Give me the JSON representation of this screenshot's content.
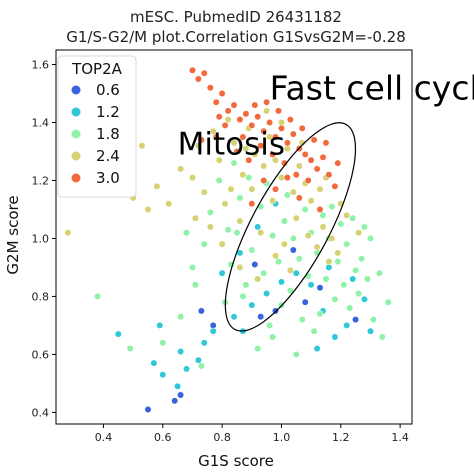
{
  "chart_data": [
    {
      "type": "scatter",
      "title_line1": "mESC. PubmedID 26431182",
      "title_line2": "G1/S-G2/M plot.Correlation G1SvsG2M=-0.28",
      "xlabel": "G1S score",
      "ylabel": "G2M score",
      "xlim": [
        0.24,
        1.44
      ],
      "ylim": [
        0.36,
        1.65
      ],
      "x_ticks": [
        "0.4",
        "0.6",
        "0.8",
        "1.0",
        "1.2",
        "1.4"
      ],
      "x_tick_values": [
        0.4,
        0.6,
        0.8,
        1.0,
        1.2,
        1.4
      ],
      "y_ticks": [
        "0.4",
        "0.6",
        "0.8",
        "1.0",
        "1.2",
        "1.4",
        "1.6"
      ],
      "y_tick_values": [
        0.4,
        0.6,
        0.8,
        1.0,
        1.2,
        1.4,
        1.6
      ],
      "grid": false,
      "legend": {
        "title": "TOP2A",
        "placement": "top-left",
        "entries": [
          {
            "label": "0.6",
            "color": "#3a62e0"
          },
          {
            "label": "1.2",
            "color": "#2ec8d8"
          },
          {
            "label": "1.8",
            "color": "#8ef3a8"
          },
          {
            "label": "2.4",
            "color": "#d6d272"
          },
          {
            "label": "3.0",
            "color": "#f26a3c"
          }
        ]
      },
      "annotations": [
        {
          "text": "Fast cell cycle",
          "x": 0.96,
          "y": 1.48
        },
        {
          "text": "Mitosis",
          "x": 0.65,
          "y": 1.29
        }
      ],
      "ellipse": {
        "cx": 1.03,
        "cy": 1.04,
        "semi_major": 0.4,
        "semi_minor": 0.13,
        "angle_deg": -62
      },
      "series": [
        {
          "points": [
            [
              0.55,
              0.41
            ],
            [
              0.64,
              0.44
            ],
            [
              0.66,
              0.46
            ],
            [
              0.73,
              0.75
            ],
            [
              0.77,
              0.7
            ],
            [
              0.93,
              0.73
            ],
            [
              0.98,
              0.75
            ],
            [
              1.08,
              0.78
            ],
            [
              1.13,
              0.83
            ],
            [
              1.25,
              0.72
            ],
            [
              1.04,
              0.96
            ],
            [
              0.91,
              0.91
            ]
          ],
          "level": "0.6"
        },
        {
          "points": [
            [
              0.45,
              0.67
            ],
            [
              0.57,
              0.57
            ],
            [
              0.6,
              0.53
            ],
            [
              0.68,
              0.55
            ],
            [
              0.72,
              0.58
            ],
            [
              0.77,
              0.68
            ],
            [
              0.84,
              0.73
            ],
            [
              0.9,
              0.77
            ],
            [
              0.95,
              0.81
            ],
            [
              1.0,
              0.85
            ],
            [
              1.05,
              0.88
            ],
            [
              1.1,
              0.84
            ],
            [
              1.16,
              0.9
            ],
            [
              1.22,
              0.7
            ],
            [
              1.28,
              0.79
            ],
            [
              1.3,
              0.68
            ],
            [
              0.8,
              0.88
            ],
            [
              0.86,
              0.95
            ],
            [
              0.92,
              1.04
            ],
            [
              0.98,
              1.12
            ],
            [
              1.12,
              0.62
            ],
            [
              1.18,
              0.66
            ],
            [
              0.66,
              0.61
            ],
            [
              0.74,
              0.64
            ],
            [
              1.24,
              0.86
            ],
            [
              1.14,
              0.75
            ],
            [
              0.87,
              0.68
            ],
            [
              0.65,
              0.49
            ],
            [
              0.59,
              0.7
            ]
          ],
          "level": "1.2"
        },
        {
          "points": [
            [
              0.38,
              0.8
            ],
            [
              0.49,
              0.62
            ],
            [
              0.6,
              0.64
            ],
            [
              0.66,
              0.73
            ],
            [
              0.71,
              0.84
            ],
            [
              0.74,
              0.98
            ],
            [
              0.76,
              1.09
            ],
            [
              0.81,
              0.78
            ],
            [
              0.83,
              0.91
            ],
            [
              0.85,
              1.02
            ],
            [
              0.86,
              1.14
            ],
            [
              0.88,
              0.84
            ],
            [
              0.9,
              0.96
            ],
            [
              0.93,
              1.11
            ],
            [
              0.94,
              0.88
            ],
            [
              0.96,
              0.7
            ],
            [
              0.97,
              1.01
            ],
            [
              0.99,
              0.92
            ],
            [
              1.0,
              0.77
            ],
            [
              1.01,
              1.06
            ],
            [
              1.03,
              0.82
            ],
            [
              1.04,
              1.0
            ],
            [
              1.06,
              0.93
            ],
            [
              1.07,
              0.72
            ],
            [
              1.09,
              0.87
            ],
            [
              1.1,
              1.02
            ],
            [
              1.12,
              0.95
            ],
            [
              1.13,
              0.74
            ],
            [
              1.15,
              0.86
            ],
            [
              1.16,
              1.0
            ],
            [
              1.18,
              0.79
            ],
            [
              1.19,
              0.92
            ],
            [
              1.21,
              0.84
            ],
            [
              1.22,
              0.98
            ],
            [
              1.23,
              0.76
            ],
            [
              1.25,
              0.89
            ],
            [
              1.26,
              0.81
            ],
            [
              1.27,
              0.93
            ],
            [
              1.29,
              0.86
            ],
            [
              1.3,
              1.0
            ],
            [
              1.31,
              0.72
            ],
            [
              1.33,
              0.88
            ],
            [
              1.34,
              0.66
            ],
            [
              0.79,
              1.2
            ],
            [
              0.84,
              1.26
            ],
            [
              0.89,
              1.21
            ],
            [
              0.95,
              1.19
            ],
            [
              1.02,
              1.15
            ],
            [
              1.08,
              1.1
            ],
            [
              1.14,
              1.08
            ],
            [
              1.2,
              1.05
            ],
            [
              0.7,
              0.9
            ],
            [
              0.73,
              0.56
            ],
            [
              0.68,
              1.02
            ],
            [
              1.17,
              1.11
            ],
            [
              1.24,
              1.07
            ],
            [
              1.28,
              1.04
            ],
            [
              0.92,
              0.62
            ],
            [
              0.97,
              0.66
            ],
            [
              1.05,
              0.6
            ],
            [
              1.11,
              0.68
            ],
            [
              0.82,
              1.03
            ],
            [
              0.87,
              0.8
            ],
            [
              1.36,
              0.78
            ]
          ],
          "level": "1.8"
        },
        {
          "points": [
            [
              0.28,
              1.02
            ],
            [
              0.5,
              1.14
            ],
            [
              0.55,
              1.1
            ],
            [
              0.58,
              1.18
            ],
            [
              0.62,
              1.12
            ],
            [
              0.66,
              1.24
            ],
            [
              0.7,
              1.21
            ],
            [
              0.72,
              1.32
            ],
            [
              0.74,
              1.16
            ],
            [
              0.77,
              1.37
            ],
            [
              0.79,
              1.27
            ],
            [
              0.81,
              1.12
            ],
            [
              0.82,
              1.41
            ],
            [
              0.84,
              1.33
            ],
            [
              0.86,
              1.06
            ],
            [
              0.87,
              1.22
            ],
            [
              0.89,
              1.38
            ],
            [
              0.9,
              1.17
            ],
            [
              0.91,
              1.29
            ],
            [
              0.93,
              1.02
            ],
            [
              0.94,
              1.25
            ],
            [
              0.96,
              1.35
            ],
            [
              0.97,
              1.13
            ],
            [
              0.98,
              1.27
            ],
            [
              1.0,
              1.21
            ],
            [
              1.01,
              0.98
            ],
            [
              1.02,
              1.31
            ],
            [
              1.04,
              1.16
            ],
            [
              1.05,
              1.07
            ],
            [
              1.06,
              1.25
            ],
            [
              1.08,
              1.19
            ],
            [
              1.09,
              1.01
            ],
            [
              1.1,
              1.13
            ],
            [
              1.12,
              0.97
            ],
            [
              1.13,
              1.17
            ],
            [
              1.14,
              1.04
            ],
            [
              1.16,
              0.92
            ],
            [
              1.17,
              1.0
            ],
            [
              1.19,
              0.95
            ],
            [
              1.2,
              1.12
            ],
            [
              0.86,
              0.9
            ],
            [
              0.92,
              0.86
            ],
            [
              0.98,
              0.94
            ],
            [
              1.03,
              0.89
            ],
            [
              0.8,
              0.98
            ],
            [
              0.76,
              1.04
            ],
            [
              1.15,
              1.21
            ],
            [
              0.95,
              1.44
            ],
            [
              1.0,
              1.4
            ],
            [
              0.53,
              1.32
            ],
            [
              0.71,
              1.07
            ],
            [
              1.07,
              1.33
            ],
            [
              0.83,
              1.17
            ],
            [
              0.88,
              1.31
            ],
            [
              1.22,
              1.08
            ],
            [
              1.26,
              1.02
            ]
          ],
          "level": "2.4"
        },
        {
          "points": [
            [
              0.7,
              1.58
            ],
            [
              0.72,
              1.55
            ],
            [
              0.74,
              1.57
            ],
            [
              0.76,
              1.52
            ],
            [
              0.78,
              1.47
            ],
            [
              0.8,
              1.5
            ],
            [
              0.82,
              1.44
            ],
            [
              0.84,
              1.46
            ],
            [
              0.86,
              1.41
            ],
            [
              0.88,
              1.43
            ],
            [
              0.9,
              1.39
            ],
            [
              0.92,
              1.42
            ],
            [
              0.94,
              1.37
            ],
            [
              0.96,
              1.4
            ],
            [
              0.98,
              1.35
            ],
            [
              1.0,
              1.38
            ],
            [
              1.02,
              1.33
            ],
            [
              1.04,
              1.36
            ],
            [
              1.06,
              1.31
            ],
            [
              1.08,
              1.29
            ],
            [
              1.1,
              1.27
            ],
            [
              1.12,
              1.24
            ],
            [
              1.14,
              1.28
            ],
            [
              1.16,
              1.22
            ],
            [
              1.18,
              1.18
            ],
            [
              0.85,
              1.3
            ],
            [
              0.89,
              1.27
            ],
            [
              0.93,
              1.32
            ],
            [
              0.97,
              1.29
            ],
            [
              1.01,
              1.26
            ],
            [
              1.05,
              1.22
            ],
            [
              1.09,
              1.2
            ],
            [
              0.78,
              1.35
            ],
            [
              0.81,
              1.39
            ],
            [
              0.87,
              1.35
            ],
            [
              0.91,
              1.46
            ],
            [
              0.95,
              1.47
            ],
            [
              0.99,
              1.44
            ],
            [
              1.03,
              1.41
            ],
            [
              1.07,
              1.38
            ],
            [
              1.11,
              1.34
            ],
            [
              1.15,
              1.33
            ],
            [
              0.94,
              1.2
            ],
            [
              0.98,
              1.17
            ],
            [
              1.02,
              1.21
            ],
            [
              0.9,
              1.12
            ],
            [
              1.06,
              1.14
            ],
            [
              0.79,
              1.42
            ],
            [
              0.73,
              1.34
            ],
            [
              1.13,
              1.1
            ],
            [
              1.19,
              1.26
            ]
          ],
          "level": "3.0"
        }
      ]
    }
  ]
}
